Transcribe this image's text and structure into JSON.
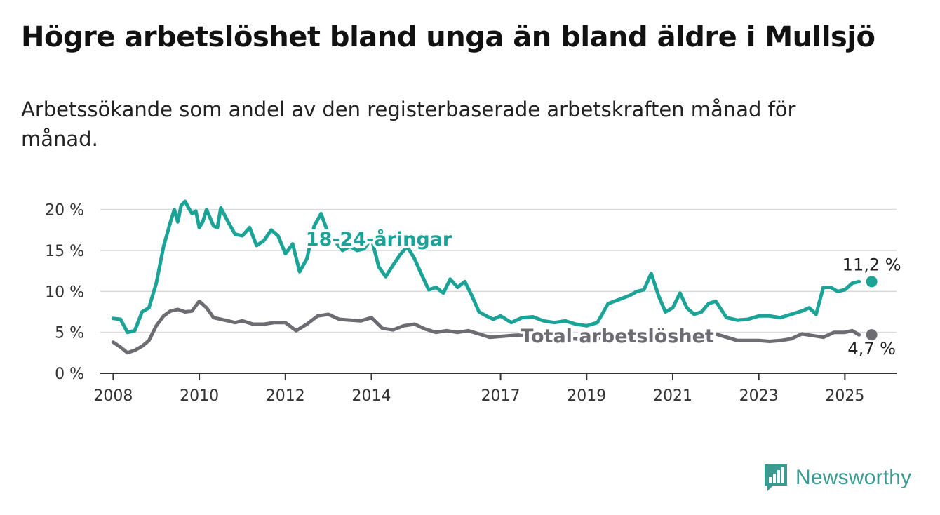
{
  "title": "Högre arbetslöshet bland unga än bland äldre i Mullsjö",
  "subtitle": "Arbetssökande som andel av den registerbaserade arbetskraften månad för månad.",
  "brand": {
    "name": "Newsworthy"
  },
  "chart_data": {
    "type": "line",
    "ylim": [
      0,
      21
    ],
    "xlim": [
      2007.7,
      2026.2
    ],
    "yticks": [
      0,
      5,
      10,
      15,
      20
    ],
    "ytick_labels": [
      "0 %",
      "5 %",
      "10 %",
      "15 %",
      "20 %"
    ],
    "xticks": [
      2008,
      2010,
      2012,
      2014,
      2017,
      2019,
      2021,
      2023,
      2025
    ],
    "xtick_labels": [
      "2008",
      "2010",
      "2012",
      "2014",
      "2017",
      "2019",
      "2021",
      "2023",
      "2025"
    ],
    "grid": "horizontal",
    "series": [
      {
        "name": "18-24-åringar",
        "color": "#1aa396",
        "end_label": "11,2 %",
        "x": [
          2008.0,
          2008.17,
          2008.33,
          2008.5,
          2008.67,
          2008.83,
          2009.0,
          2009.17,
          2009.33,
          2009.42,
          2009.5,
          2009.58,
          2009.67,
          2009.75,
          2009.83,
          2009.92,
          2010.0,
          2010.08,
          2010.17,
          2010.33,
          2010.42,
          2010.5,
          2010.67,
          2010.83,
          2011.0,
          2011.17,
          2011.33,
          2011.5,
          2011.67,
          2011.83,
          2012.0,
          2012.17,
          2012.33,
          2012.5,
          2012.67,
          2012.83,
          2013.0,
          2013.17,
          2013.33,
          2013.5,
          2013.67,
          2013.83,
          2014.0,
          2014.17,
          2014.33,
          2014.5,
          2014.67,
          2014.83,
          2015.0,
          2015.17,
          2015.33,
          2015.5,
          2015.67,
          2015.83,
          2016.0,
          2016.17,
          2016.33,
          2016.5,
          2016.67,
          2016.83,
          2017.0,
          2017.25,
          2017.5,
          2017.75,
          2018.0,
          2018.25,
          2018.5,
          2018.75,
          2019.0,
          2019.25,
          2019.5,
          2019.75,
          2020.0,
          2020.17,
          2020.33,
          2020.5,
          2020.67,
          2020.83,
          2021.0,
          2021.17,
          2021.33,
          2021.5,
          2021.67,
          2021.83,
          2022.0,
          2022.25,
          2022.5,
          2022.75,
          2023.0,
          2023.25,
          2023.5,
          2023.75,
          2024.0,
          2024.17,
          2024.33,
          2024.5,
          2024.67,
          2024.83,
          2025.0,
          2025.17,
          2025.33
        ],
        "y": [
          6.7,
          6.6,
          5.0,
          5.2,
          7.5,
          8.0,
          11.0,
          15.5,
          18.5,
          20.0,
          18.5,
          20.5,
          21.0,
          20.2,
          19.5,
          19.8,
          17.8,
          18.5,
          20.0,
          18.0,
          17.8,
          20.2,
          18.5,
          17.0,
          16.8,
          17.8,
          15.6,
          16.2,
          17.5,
          16.8,
          14.6,
          15.8,
          12.4,
          14.0,
          18.0,
          19.5,
          17.0,
          16.0,
          15.0,
          15.5,
          15.0,
          15.2,
          16.5,
          13.0,
          11.8,
          13.2,
          14.5,
          15.5,
          14.0,
          12.0,
          10.2,
          10.5,
          9.8,
          11.5,
          10.5,
          11.2,
          9.5,
          7.5,
          7.0,
          6.6,
          7.0,
          6.2,
          6.8,
          6.9,
          6.4,
          6.2,
          6.4,
          6.0,
          5.8,
          6.2,
          8.5,
          9.0,
          9.5,
          10.0,
          10.2,
          12.2,
          9.5,
          7.5,
          8.0,
          9.8,
          8.0,
          7.2,
          7.5,
          8.5,
          8.8,
          6.8,
          6.5,
          6.6,
          7.0,
          7.0,
          6.8,
          7.2,
          7.6,
          8.0,
          7.2,
          10.5,
          10.5,
          10.0,
          10.2,
          11.0,
          11.2
        ]
      },
      {
        "name": "Total arbetslöshet",
        "color": "#6e6c73",
        "end_label": "4,7 %",
        "x": [
          2008.0,
          2008.17,
          2008.33,
          2008.5,
          2008.67,
          2008.83,
          2009.0,
          2009.17,
          2009.33,
          2009.5,
          2009.67,
          2009.83,
          2010.0,
          2010.17,
          2010.33,
          2010.5,
          2010.67,
          2010.83,
          2011.0,
          2011.25,
          2011.5,
          2011.75,
          2012.0,
          2012.25,
          2012.5,
          2012.75,
          2013.0,
          2013.25,
          2013.5,
          2013.75,
          2014.0,
          2014.25,
          2014.5,
          2014.75,
          2015.0,
          2015.25,
          2015.5,
          2015.75,
          2016.0,
          2016.25,
          2016.5,
          2016.75,
          2017.0,
          2017.25,
          2017.5,
          2017.75,
          2018.0,
          2018.25,
          2018.5,
          2018.75,
          2019.0,
          2019.25,
          2019.5,
          2019.75,
          2020.0,
          2020.25,
          2020.5,
          2020.75,
          2021.0,
          2021.25,
          2021.5,
          2021.75,
          2022.0,
          2022.25,
          2022.5,
          2022.75,
          2023.0,
          2023.25,
          2023.5,
          2023.75,
          2024.0,
          2024.25,
          2024.5,
          2024.75,
          2025.0,
          2025.17,
          2025.33
        ],
        "y": [
          3.8,
          3.2,
          2.5,
          2.8,
          3.3,
          4.0,
          5.8,
          7.0,
          7.6,
          7.8,
          7.5,
          7.6,
          8.8,
          8.0,
          6.8,
          6.6,
          6.4,
          6.2,
          6.4,
          6.0,
          6.0,
          6.2,
          6.2,
          5.2,
          6.0,
          7.0,
          7.2,
          6.6,
          6.5,
          6.4,
          6.8,
          5.5,
          5.3,
          5.8,
          6.0,
          5.4,
          5.0,
          5.2,
          5.0,
          5.2,
          4.8,
          4.4,
          4.5,
          4.6,
          4.7,
          4.6,
          4.5,
          4.4,
          4.3,
          4.2,
          4.0,
          4.3,
          4.5,
          4.8,
          5.0,
          5.0,
          4.6,
          4.5,
          4.6,
          4.5,
          4.4,
          4.6,
          4.8,
          4.4,
          4.0,
          4.0,
          4.0,
          3.9,
          4.0,
          4.2,
          4.8,
          4.6,
          4.4,
          5.0,
          5.0,
          5.2,
          4.7
        ]
      }
    ]
  }
}
